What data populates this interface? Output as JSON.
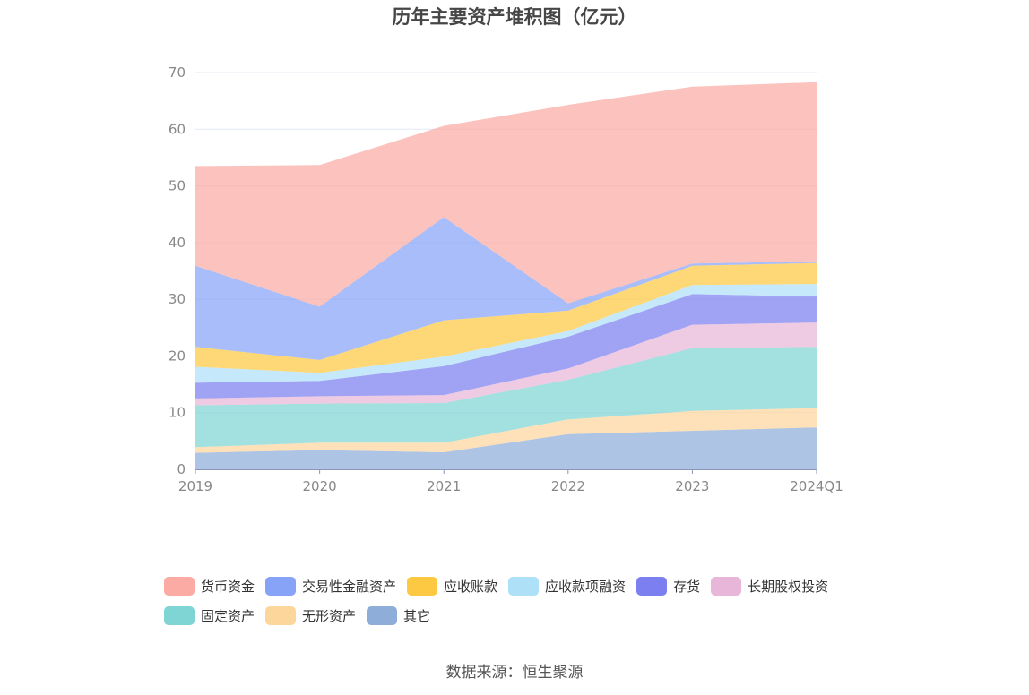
{
  "chart_data": {
    "type": "area",
    "stacked": true,
    "title": "历年主要资产堆积图（亿元）",
    "x": [
      "2019",
      "2020",
      "2021",
      "2022",
      "2023",
      "2024Q1"
    ],
    "ylim": [
      0,
      70
    ],
    "yticks": [
      0,
      10,
      20,
      30,
      40,
      50,
      60,
      70
    ],
    "grid": true,
    "legend_position": "bottom",
    "series": [
      {
        "name": "其它",
        "color": "#8eadd9",
        "values": [
          2.9,
          3.4,
          3.0,
          6.2,
          6.8,
          7.4
        ]
      },
      {
        "name": "无形资产",
        "color": "#fdd69c",
        "values": [
          1.0,
          1.3,
          1.7,
          2.6,
          3.5,
          3.4
        ]
      },
      {
        "name": "固定资产",
        "color": "#7fd4d4",
        "values": [
          7.4,
          6.9,
          7.0,
          7.0,
          11.1,
          10.8
        ]
      },
      {
        "name": "长期股权投资",
        "color": "#e8b6d8",
        "values": [
          1.2,
          1.3,
          1.4,
          2.0,
          4.1,
          4.3
        ]
      },
      {
        "name": "存货",
        "color": "#7b7ff0",
        "values": [
          2.8,
          2.7,
          5.1,
          5.6,
          5.4,
          4.6
        ]
      },
      {
        "name": "应收款项融资",
        "color": "#aee0f8",
        "values": [
          2.8,
          1.4,
          1.7,
          1.0,
          1.6,
          2.2
        ]
      },
      {
        "name": "应收账款",
        "color": "#fdc942",
        "values": [
          3.5,
          2.3,
          6.4,
          3.6,
          3.4,
          3.7
        ]
      },
      {
        "name": "交易性金融资产",
        "color": "#86a3f7",
        "values": [
          14.3,
          9.4,
          18.2,
          1.3,
          0.4,
          0.3
        ]
      },
      {
        "name": "货币资金",
        "color": "#fbaaa4",
        "values": [
          17.6,
          25.0,
          16.1,
          35.0,
          31.2,
          31.6
        ]
      }
    ]
  },
  "legend_order": [
    "货币资金",
    "交易性金融资产",
    "应收账款",
    "应收款项融资",
    "存货",
    "长期股权投资",
    "固定资产",
    "无形资产",
    "其它"
  ],
  "source": "数据来源：恒生聚源"
}
